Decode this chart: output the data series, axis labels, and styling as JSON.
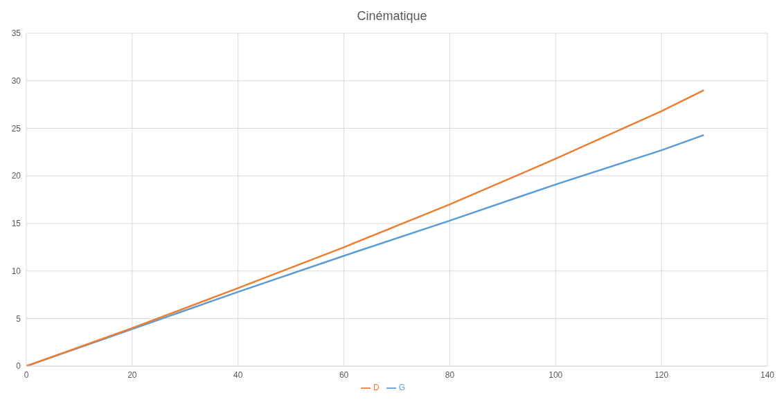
{
  "chart_data": {
    "type": "line",
    "title": "Cinématique",
    "x": [
      0,
      20,
      40,
      60,
      80,
      100,
      120,
      128
    ],
    "series": [
      {
        "name": "G",
        "color": "#5b9bd5",
        "values": [
          0,
          3.9,
          7.8,
          11.6,
          15.3,
          19.1,
          22.7,
          24.3
        ]
      },
      {
        "name": "D",
        "color": "#ed7d31",
        "values": [
          0,
          4.0,
          8.2,
          12.5,
          17.0,
          21.8,
          26.8,
          29.0
        ]
      }
    ],
    "xlim": [
      0,
      140
    ],
    "xticks": [
      0,
      20,
      40,
      60,
      80,
      100,
      120,
      140
    ],
    "ylim": [
      0,
      35
    ],
    "yticks": [
      0,
      5,
      10,
      15,
      20,
      25,
      30,
      35
    ],
    "grid": true,
    "legend": "bottom",
    "marker": "none",
    "line_style": "solid"
  }
}
